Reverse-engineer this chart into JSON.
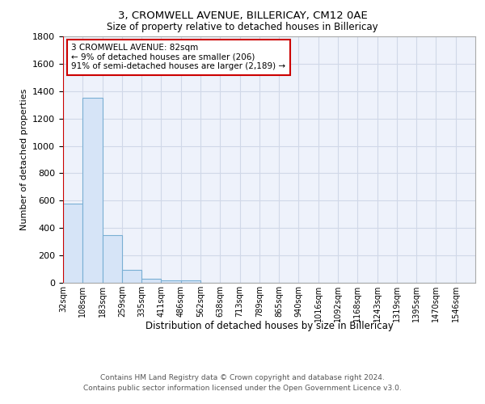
{
  "title_line1": "3, CROMWELL AVENUE, BILLERICAY, CM12 0AE",
  "title_line2": "Size of property relative to detached houses in Billericay",
  "xlabel": "Distribution of detached houses by size in Billericay",
  "ylabel": "Number of detached properties",
  "bin_labels": [
    "32sqm",
    "108sqm",
    "183sqm",
    "259sqm",
    "335sqm",
    "411sqm",
    "486sqm",
    "562sqm",
    "638sqm",
    "713sqm",
    "789sqm",
    "865sqm",
    "940sqm",
    "1016sqm",
    "1092sqm",
    "1168sqm",
    "1243sqm",
    "1319sqm",
    "1395sqm",
    "1470sqm",
    "1546sqm"
  ],
  "bar_heights": [
    580,
    1350,
    350,
    95,
    30,
    20,
    15,
    0,
    0,
    0,
    0,
    0,
    0,
    0,
    0,
    0,
    0,
    0,
    0,
    0,
    0
  ],
  "bar_color": "#d6e4f7",
  "bar_edge_color": "#7aafd4",
  "grid_color": "#d0d8e8",
  "background_color": "#eef2fb",
  "ylim": [
    0,
    1800
  ],
  "yticks": [
    0,
    200,
    400,
    600,
    800,
    1000,
    1200,
    1400,
    1600,
    1800
  ],
  "property_line_color": "#cc0000",
  "annotation_text": "3 CROMWELL AVENUE: 82sqm\n← 9% of detached houses are smaller (206)\n91% of semi-detached houses are larger (2,189) →",
  "annotation_box_color": "#ffffff",
  "annotation_box_edge": "#cc0000",
  "footer_line1": "Contains HM Land Registry data © Crown copyright and database right 2024.",
  "footer_line2": "Contains public sector information licensed under the Open Government Licence v3.0."
}
